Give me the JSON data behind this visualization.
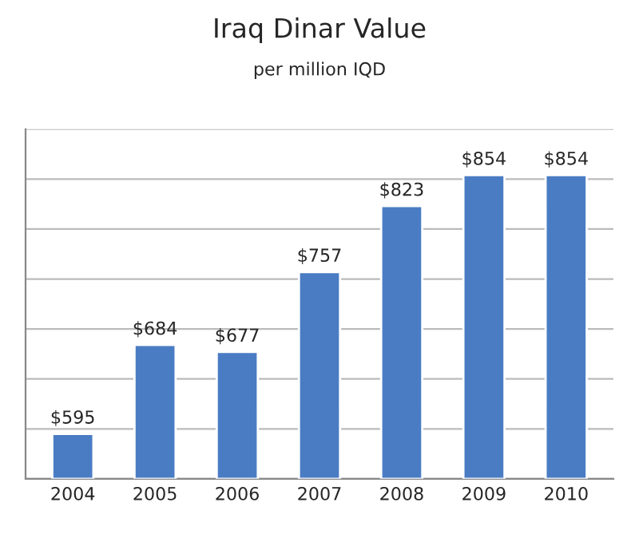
{
  "chart_data": {
    "type": "bar",
    "title": "Iraq Dinar Value",
    "subtitle": "per million IQD",
    "categories": [
      "2004",
      "2005",
      "2006",
      "2007",
      "2008",
      "2009",
      "2010"
    ],
    "values": [
      595,
      684,
      677,
      757,
      823,
      854,
      854
    ],
    "value_labels": [
      "$595",
      "$684",
      "$677",
      "$757",
      "$823",
      "$854",
      "$854"
    ],
    "color": "#4a7cc4",
    "ylim": [
      550,
      900
    ],
    "yticks": [
      {
        "value": 550,
        "label": null
      },
      {
        "value": 600,
        "label": null
      },
      {
        "value": 650,
        "label": null
      },
      {
        "value": 700,
        "label": null
      },
      {
        "value": 750,
        "label": null
      },
      {
        "value": 800,
        "label": null
      },
      {
        "value": 850,
        "label": null
      },
      {
        "value": 900,
        "label": null
      }
    ],
    "tick_labels": "x",
    "grid": "y",
    "legend": false
  }
}
